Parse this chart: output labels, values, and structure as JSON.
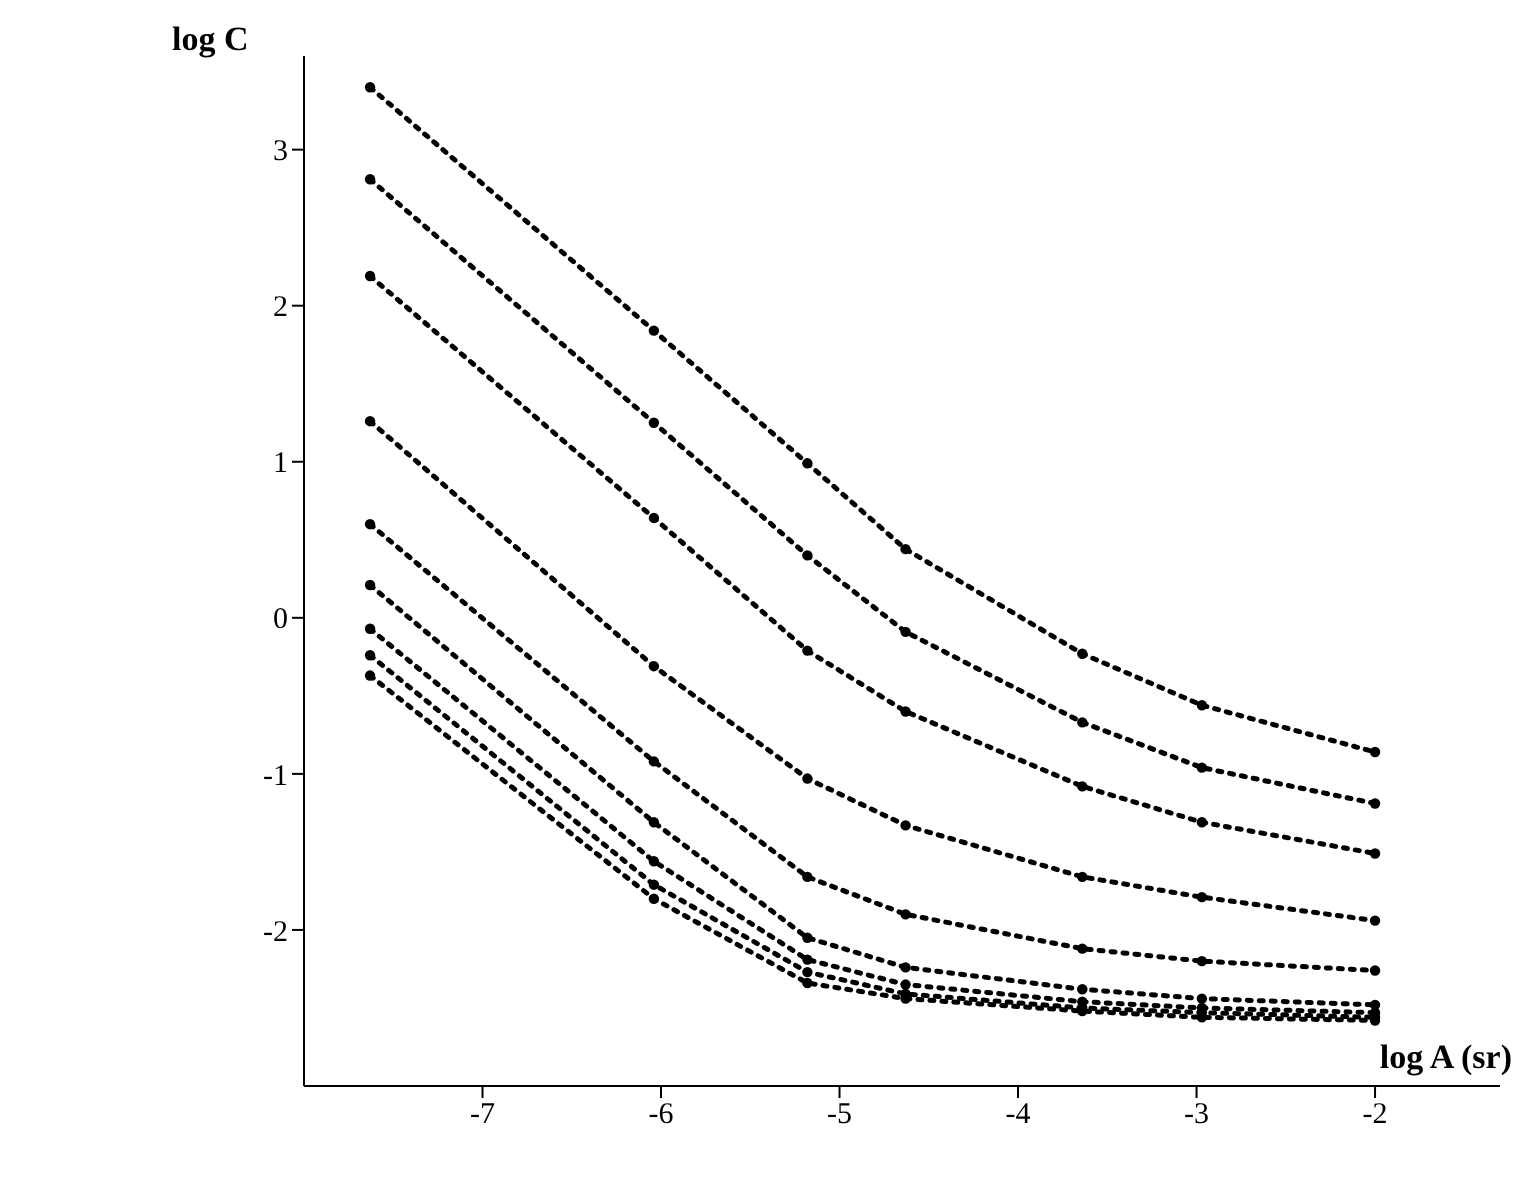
{
  "chart_data": {
    "type": "line",
    "xlabel": "log A (sr)",
    "ylabel": "log C",
    "x": [
      -7.63,
      -6.04,
      -5.18,
      -4.63,
      -3.64,
      -2.97,
      -2.0
    ],
    "series": [
      {
        "color": "#000000",
        "values": [
          3.4,
          1.84,
          0.99,
          0.44,
          -0.23,
          -0.56,
          -0.86
        ]
      },
      {
        "color": "#000000",
        "values": [
          2.81,
          1.25,
          0.4,
          -0.09,
          -0.67,
          -0.96,
          -1.19
        ]
      },
      {
        "color": "#000000",
        "values": [
          2.19,
          0.64,
          -0.21,
          -0.6,
          -1.08,
          -1.31,
          -1.51
        ]
      },
      {
        "color": "#000000",
        "values": [
          1.26,
          -0.31,
          -1.03,
          -1.33,
          -1.66,
          -1.79,
          -1.94
        ]
      },
      {
        "color": "#000000",
        "values": [
          0.6,
          -0.92,
          -1.66,
          -1.9,
          -2.12,
          -2.2,
          -2.26
        ]
      },
      {
        "color": "#000000",
        "values": [
          0.21,
          -1.31,
          -2.05,
          -2.24,
          -2.38,
          -2.44,
          -2.48
        ]
      },
      {
        "color": "#000000",
        "values": [
          -0.07,
          -1.56,
          -2.19,
          -2.35,
          -2.46,
          -2.5,
          -2.53
        ]
      },
      {
        "color": "#000000",
        "values": [
          -0.24,
          -1.71,
          -2.27,
          -2.41,
          -2.5,
          -2.53,
          -2.56
        ]
      },
      {
        "color": "#000000",
        "values": [
          -0.37,
          -1.8,
          -2.34,
          -2.44,
          -2.52,
          -2.56,
          -2.58
        ]
      }
    ],
    "xlim": [
      -8,
      -1.3
    ],
    "xticks": [
      -7,
      -6,
      -5,
      -4,
      -3,
      -2
    ],
    "ylim": [
      -3,
      3.6
    ],
    "yticks": [
      -2,
      -1,
      0,
      1,
      2,
      3
    ],
    "grid": false,
    "legend": false,
    "marker": "circle",
    "line_style": "dotted"
  }
}
